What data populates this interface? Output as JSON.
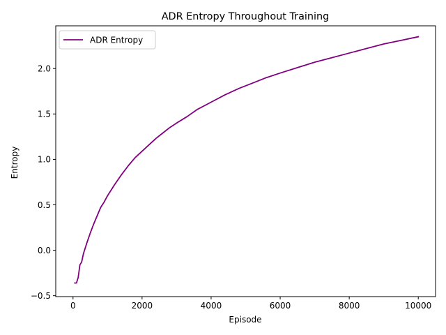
{
  "chart_data": {
    "type": "line",
    "title": "ADR Entropy Throughout Training",
    "xlabel": "Episode",
    "ylabel": "Entropy",
    "xlim": [
      -500,
      10500
    ],
    "ylim": [
      -0.51,
      2.47
    ],
    "xticks": [
      0,
      2000,
      4000,
      6000,
      8000,
      10000
    ],
    "yticks": [
      -0.5,
      0.0,
      0.5,
      1.0,
      1.5,
      2.0
    ],
    "ytick_labels": [
      "−0.5",
      "0.0",
      "0.5",
      "1.0",
      "1.5",
      "2.0"
    ],
    "grid": false,
    "legend_position": "upper-left",
    "series": [
      {
        "name": "ADR Entropy",
        "color": "#800080",
        "x": [
          50,
          100,
          150,
          200,
          250,
          300,
          350,
          400,
          500,
          600,
          700,
          800,
          900,
          1000,
          1200,
          1400,
          1600,
          1800,
          2000,
          2200,
          2400,
          2600,
          2800,
          3000,
          3300,
          3600,
          4000,
          4400,
          4800,
          5200,
          5600,
          6000,
          6500,
          7000,
          7500,
          8000,
          8500,
          9000,
          9500,
          10000
        ],
        "y": [
          -0.36,
          -0.36,
          -0.3,
          -0.16,
          -0.13,
          -0.04,
          0.02,
          0.08,
          0.19,
          0.29,
          0.38,
          0.47,
          0.53,
          0.6,
          0.72,
          0.83,
          0.93,
          1.02,
          1.09,
          1.16,
          1.23,
          1.29,
          1.35,
          1.4,
          1.47,
          1.55,
          1.63,
          1.71,
          1.78,
          1.84,
          1.9,
          1.95,
          2.01,
          2.07,
          2.12,
          2.17,
          2.22,
          2.27,
          2.31,
          2.35
        ]
      }
    ]
  }
}
